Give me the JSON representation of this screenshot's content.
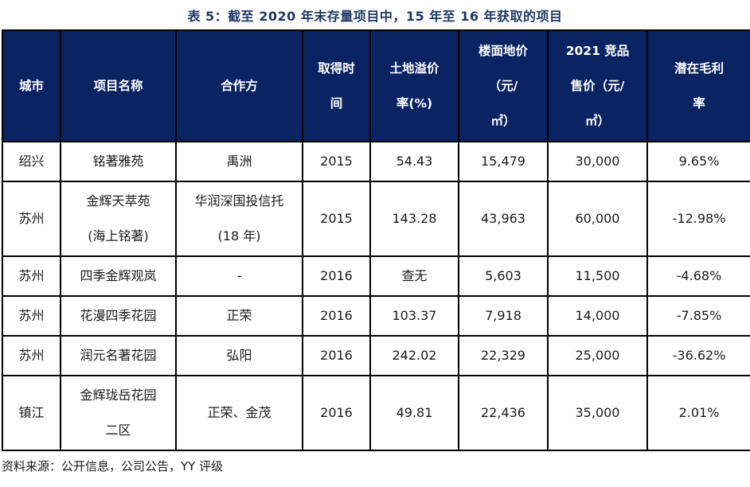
{
  "title": "表 5：截至 2020 年末存量项目中，15 年至 16 年获取的项目",
  "table": {
    "columns": [
      "城市",
      "项目名称",
      "合作方",
      "取得时\n间",
      "土地溢价\n率(%)",
      "楼面地价\n（元/\n㎡）",
      "2021 竞品\n售价（元/\n㎡）",
      "潜在毛利\n率"
    ],
    "rows": [
      [
        "绍兴",
        "铭著雅苑",
        "禹洲",
        "2015",
        "54.43",
        "15,479",
        "30,000",
        "9.65%"
      ],
      [
        "苏州",
        "金辉天萃苑\n(海上铭著)",
        "华润深国投信托\n(18 年)",
        "2015",
        "143.28",
        "43,963",
        "60,000",
        "-12.98%"
      ],
      [
        "苏州",
        "四季金辉观岚",
        "-",
        "2016",
        "查无",
        "5,603",
        "11,500",
        "-4.68%"
      ],
      [
        "苏州",
        "花漫四季花园",
        "正荣",
        "2016",
        "103.37",
        "7,918",
        "14,000",
        "-7.85%"
      ],
      [
        "苏州",
        "润元名著花园",
        "弘阳",
        "2016",
        "242.02",
        "22,329",
        "25,000",
        "-36.62%"
      ],
      [
        "镇江",
        "金辉珑岳花园\n二区",
        "正荣、金茂",
        "2016",
        "49.81",
        "22,436",
        "35,000",
        "2.01%"
      ]
    ]
  },
  "source_note": "资料来源：公开信息，公司公告，YY 评级",
  "colors": {
    "header_bg": "#0a2363",
    "title_text": "#1f3864",
    "border": "#000000"
  }
}
